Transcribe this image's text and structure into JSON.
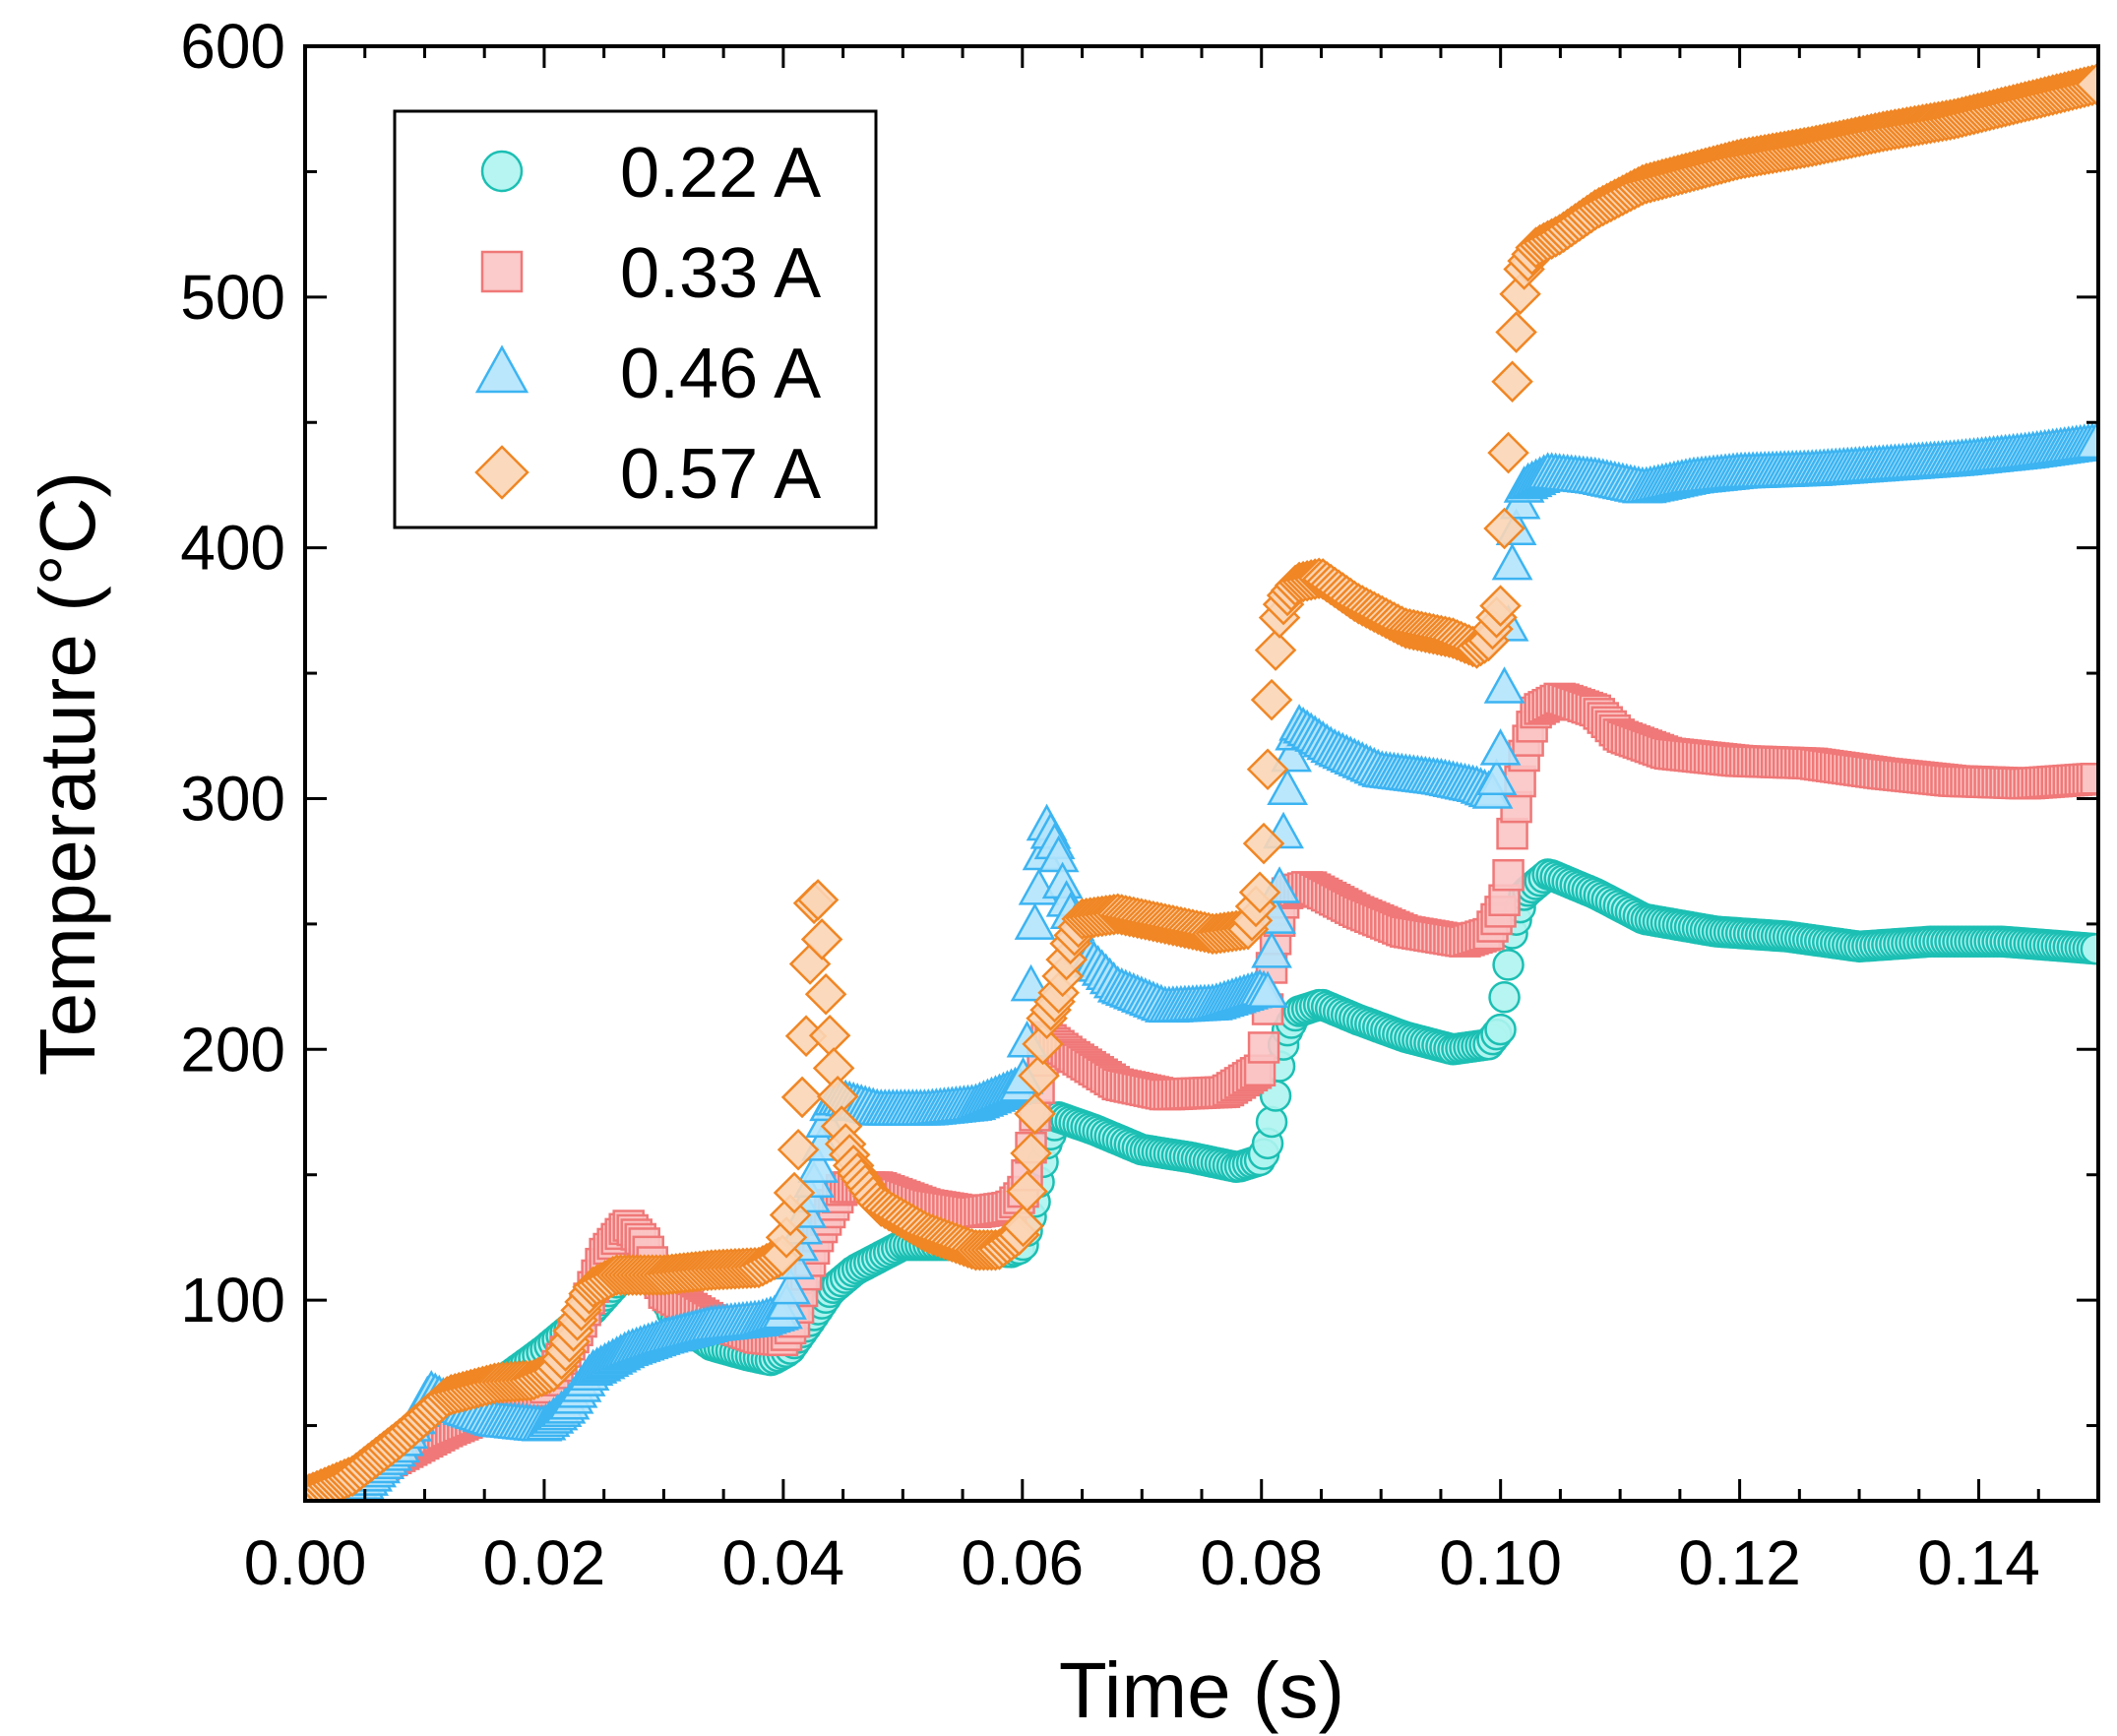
{
  "chart_data": {
    "type": "scatter",
    "title": "",
    "xlabel": "Time (s)",
    "ylabel": "Temperature (°C)",
    "xlim": [
      0.0,
      0.15
    ],
    "ylim": [
      20,
      600
    ],
    "x_ticks": [
      0.0,
      0.02,
      0.04,
      0.06,
      0.08,
      0.1,
      0.12,
      0.14
    ],
    "x_tick_labels": [
      "0.00",
      "0.02",
      "0.04",
      "0.06",
      "0.08",
      "0.10",
      "0.12",
      "0.14"
    ],
    "y_ticks": [
      100,
      200,
      300,
      400,
      500,
      600
    ],
    "y_tick_labels": [
      "100",
      "200",
      "300",
      "400",
      "500",
      "600"
    ],
    "grid": false,
    "legend_position": "top-left",
    "series": [
      {
        "name": "0.22 A",
        "marker": "circle",
        "edge_color": "#1cbfb3",
        "fill_color": "#aef4ef",
        "points": [
          [
            0.0,
            18
          ],
          [
            0.004,
            22
          ],
          [
            0.008,
            38
          ],
          [
            0.012,
            55
          ],
          [
            0.016,
            66
          ],
          [
            0.02,
            80
          ],
          [
            0.024,
            96
          ],
          [
            0.027,
            112
          ],
          [
            0.029,
            112
          ],
          [
            0.031,
            92
          ],
          [
            0.034,
            82
          ],
          [
            0.037,
            78
          ],
          [
            0.039,
            76
          ],
          [
            0.0405,
            80
          ],
          [
            0.042,
            90
          ],
          [
            0.043,
            97
          ],
          [
            0.044,
            104
          ],
          [
            0.046,
            112
          ],
          [
            0.05,
            122
          ],
          [
            0.055,
            122
          ],
          [
            0.059,
            119
          ],
          [
            0.06,
            121
          ],
          [
            0.061,
            138
          ],
          [
            0.0615,
            150
          ],
          [
            0.062,
            162
          ],
          [
            0.063,
            173
          ],
          [
            0.066,
            168
          ],
          [
            0.07,
            160
          ],
          [
            0.074,
            157
          ],
          [
            0.078,
            153
          ],
          [
            0.08,
            156
          ],
          [
            0.0805,
            162
          ],
          [
            0.081,
            175
          ],
          [
            0.0815,
            193
          ],
          [
            0.082,
            206
          ],
          [
            0.083,
            215
          ],
          [
            0.085,
            218
          ],
          [
            0.088,
            212
          ],
          [
            0.092,
            205
          ],
          [
            0.096,
            200
          ],
          [
            0.099,
            202
          ],
          [
            0.1,
            208
          ],
          [
            0.1005,
            228
          ],
          [
            0.101,
            247
          ],
          [
            0.102,
            262
          ],
          [
            0.104,
            270
          ],
          [
            0.108,
            262
          ],
          [
            0.112,
            252
          ],
          [
            0.118,
            247
          ],
          [
            0.124,
            245
          ],
          [
            0.13,
            241
          ],
          [
            0.136,
            243
          ],
          [
            0.142,
            243
          ],
          [
            0.15,
            240
          ]
        ]
      },
      {
        "name": "0.33 A",
        "marker": "square",
        "edge_color": "#f07878",
        "fill_color": "#fbc4c4",
        "points": [
          [
            0.0,
            22
          ],
          [
            0.004,
            28
          ],
          [
            0.008,
            38
          ],
          [
            0.012,
            48
          ],
          [
            0.016,
            56
          ],
          [
            0.02,
            64
          ],
          [
            0.023,
            90
          ],
          [
            0.025,
            118
          ],
          [
            0.027,
            130
          ],
          [
            0.0285,
            122
          ],
          [
            0.03,
            103
          ],
          [
            0.034,
            92
          ],
          [
            0.038,
            85
          ],
          [
            0.04,
            84
          ],
          [
            0.041,
            92
          ],
          [
            0.042,
            112
          ],
          [
            0.043,
            127
          ],
          [
            0.045,
            145
          ],
          [
            0.048,
            145
          ],
          [
            0.052,
            138
          ],
          [
            0.056,
            135
          ],
          [
            0.059,
            137
          ],
          [
            0.06,
            142
          ],
          [
            0.0605,
            152
          ],
          [
            0.061,
            172
          ],
          [
            0.062,
            205
          ],
          [
            0.064,
            198
          ],
          [
            0.068,
            186
          ],
          [
            0.072,
            182
          ],
          [
            0.077,
            183
          ],
          [
            0.08,
            192
          ],
          [
            0.0805,
            215
          ],
          [
            0.081,
            240
          ],
          [
            0.082,
            262
          ],
          [
            0.084,
            265
          ],
          [
            0.088,
            255
          ],
          [
            0.092,
            247
          ],
          [
            0.097,
            243
          ],
          [
            0.099,
            246
          ],
          [
            0.1,
            255
          ],
          [
            0.1005,
            262
          ],
          [
            0.101,
            287
          ],
          [
            0.102,
            318
          ],
          [
            0.103,
            335
          ],
          [
            0.105,
            340
          ],
          [
            0.108,
            335
          ],
          [
            0.11,
            325
          ],
          [
            0.114,
            318
          ],
          [
            0.12,
            315
          ],
          [
            0.126,
            314
          ],
          [
            0.132,
            310
          ],
          [
            0.138,
            307
          ],
          [
            0.144,
            306
          ],
          [
            0.15,
            308
          ]
        ]
      },
      {
        "name": "0.46 A",
        "marker": "triangle",
        "edge_color": "#3cb4f2",
        "fill_color": "#b4e4fc",
        "points": [
          [
            0.0,
            15
          ],
          [
            0.004,
            22
          ],
          [
            0.008,
            42
          ],
          [
            0.0105,
            64
          ],
          [
            0.013,
            57
          ],
          [
            0.016,
            52
          ],
          [
            0.02,
            50
          ],
          [
            0.022,
            58
          ],
          [
            0.024,
            72
          ],
          [
            0.027,
            80
          ],
          [
            0.03,
            85
          ],
          [
            0.034,
            90
          ],
          [
            0.038,
            92
          ],
          [
            0.04,
            95
          ],
          [
            0.0405,
            102
          ],
          [
            0.041,
            117
          ],
          [
            0.042,
            137
          ],
          [
            0.043,
            155
          ],
          [
            0.0435,
            170
          ],
          [
            0.044,
            180
          ],
          [
            0.045,
            180
          ],
          [
            0.048,
            176
          ],
          [
            0.052,
            176
          ],
          [
            0.056,
            178
          ],
          [
            0.06,
            186
          ],
          [
            0.0605,
            208
          ],
          [
            0.061,
            248
          ],
          [
            0.062,
            290
          ],
          [
            0.0625,
            285
          ],
          [
            0.063,
            278
          ],
          [
            0.0635,
            262
          ],
          [
            0.065,
            240
          ],
          [
            0.068,
            225
          ],
          [
            0.072,
            217
          ],
          [
            0.076,
            218
          ],
          [
            0.08,
            224
          ],
          [
            0.0805,
            222
          ],
          [
            0.081,
            246
          ],
          [
            0.0815,
            264
          ],
          [
            0.082,
            297
          ],
          [
            0.0825,
            317
          ],
          [
            0.083,
            330
          ],
          [
            0.086,
            320
          ],
          [
            0.09,
            311
          ],
          [
            0.095,
            308
          ],
          [
            0.098,
            305
          ],
          [
            0.0995,
            302
          ],
          [
            0.1,
            320
          ],
          [
            0.1005,
            358
          ],
          [
            0.101,
            395
          ],
          [
            0.1015,
            415
          ],
          [
            0.102,
            425
          ],
          [
            0.104,
            430
          ],
          [
            0.108,
            428
          ],
          [
            0.112,
            424
          ],
          [
            0.116,
            428
          ],
          [
            0.12,
            430
          ],
          [
            0.126,
            431
          ],
          [
            0.132,
            433
          ],
          [
            0.138,
            435
          ],
          [
            0.144,
            438
          ],
          [
            0.15,
            442
          ]
        ]
      },
      {
        "name": "0.57 A",
        "marker": "diamond",
        "edge_color": "#f08624",
        "fill_color": "#fbd5b5",
        "points": [
          [
            0.0,
            22
          ],
          [
            0.004,
            30
          ],
          [
            0.008,
            45
          ],
          [
            0.012,
            62
          ],
          [
            0.016,
            67
          ],
          [
            0.019,
            68
          ],
          [
            0.021,
            72
          ],
          [
            0.022,
            82
          ],
          [
            0.023,
            95
          ],
          [
            0.024,
            105
          ],
          [
            0.026,
            110
          ],
          [
            0.03,
            110
          ],
          [
            0.034,
            112
          ],
          [
            0.038,
            113
          ],
          [
            0.04,
            118
          ],
          [
            0.041,
            145
          ],
          [
            0.0415,
            175
          ],
          [
            0.042,
            212
          ],
          [
            0.0425,
            258
          ],
          [
            0.043,
            260
          ],
          [
            0.0435,
            225
          ],
          [
            0.044,
            200
          ],
          [
            0.0445,
            183
          ],
          [
            0.045,
            165
          ],
          [
            0.046,
            152
          ],
          [
            0.048,
            138
          ],
          [
            0.052,
            127
          ],
          [
            0.056,
            120
          ],
          [
            0.058,
            120
          ],
          [
            0.06,
            127
          ],
          [
            0.0605,
            148
          ],
          [
            0.061,
            172
          ],
          [
            0.0615,
            195
          ],
          [
            0.062,
            212
          ],
          [
            0.063,
            222
          ],
          [
            0.064,
            242
          ],
          [
            0.065,
            252
          ],
          [
            0.068,
            254
          ],
          [
            0.072,
            250
          ],
          [
            0.076,
            246
          ],
          [
            0.079,
            248
          ],
          [
            0.08,
            265
          ],
          [
            0.0805,
            310
          ],
          [
            0.081,
            352
          ],
          [
            0.0815,
            372
          ],
          [
            0.082,
            380
          ],
          [
            0.083,
            386
          ],
          [
            0.085,
            388
          ],
          [
            0.088,
            378
          ],
          [
            0.092,
            368
          ],
          [
            0.096,
            364
          ],
          [
            0.098,
            360
          ],
          [
            0.099,
            363
          ],
          [
            0.1,
            377
          ],
          [
            0.1005,
            425
          ],
          [
            0.101,
            468
          ],
          [
            0.1015,
            497
          ],
          [
            0.102,
            512
          ],
          [
            0.103,
            520
          ],
          [
            0.105,
            525
          ],
          [
            0.108,
            535
          ],
          [
            0.112,
            545
          ],
          [
            0.116,
            550
          ],
          [
            0.12,
            555
          ],
          [
            0.126,
            560
          ],
          [
            0.132,
            566
          ],
          [
            0.138,
            571
          ],
          [
            0.144,
            578
          ],
          [
            0.15,
            585
          ]
        ]
      }
    ]
  }
}
